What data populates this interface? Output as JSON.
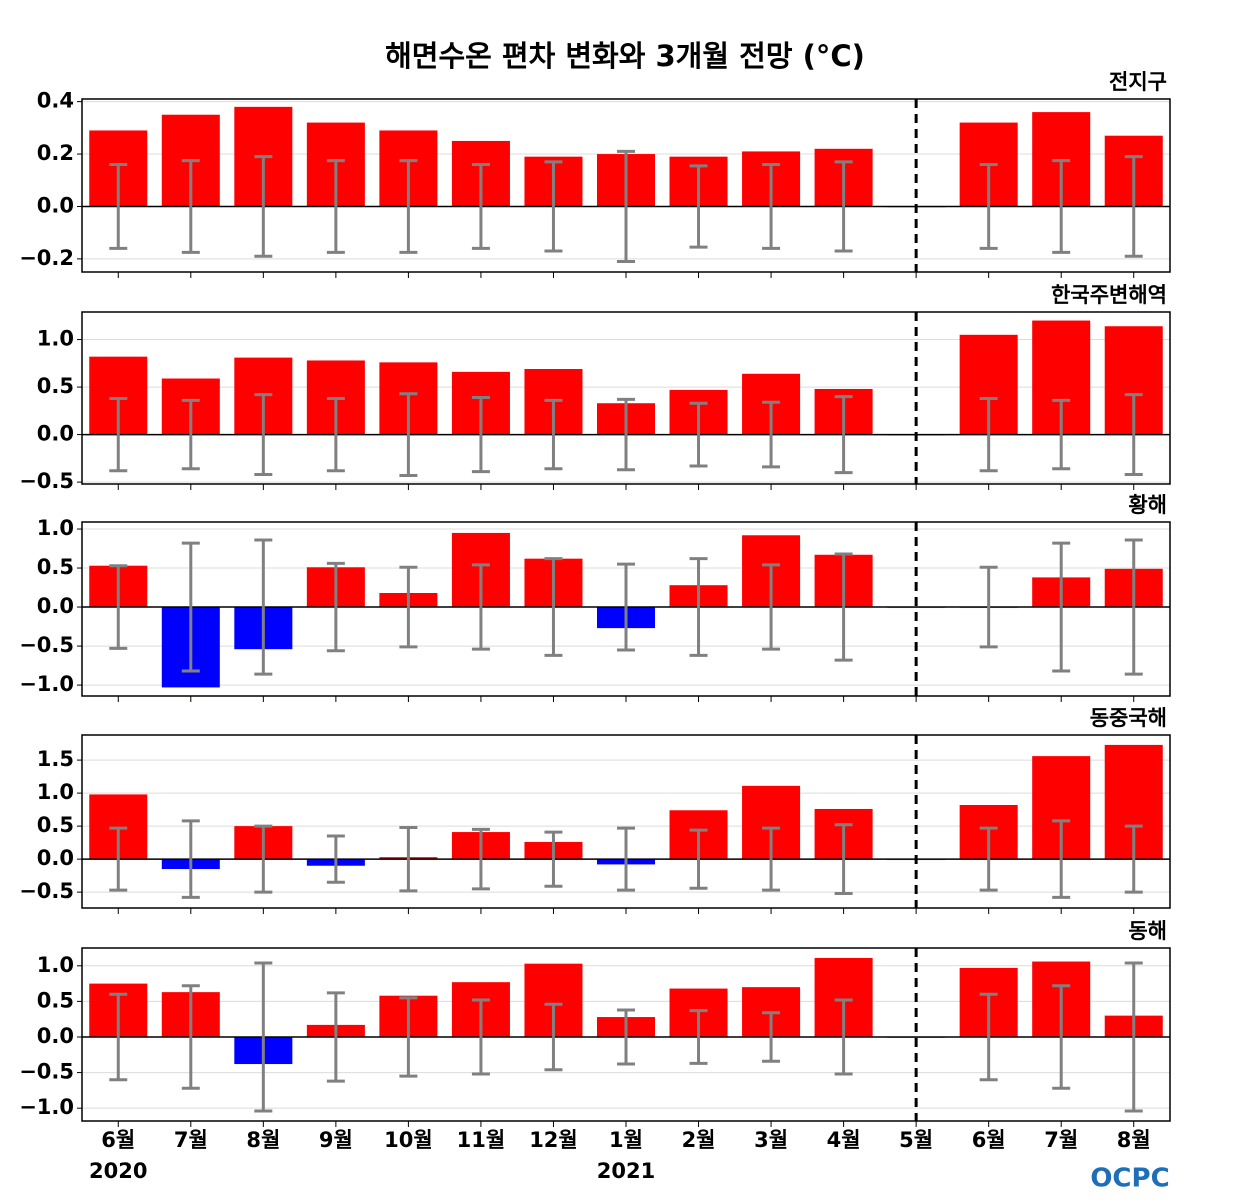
{
  "title": "해면수온 편차 변화와 3개월 전망 (°C)",
  "logo": "OCPC",
  "categories": [
    "6월",
    "7월",
    "8월",
    "9월",
    "10월",
    "11월",
    "12월",
    "1월",
    "2월",
    "3월",
    "4월",
    "5월",
    "6월",
    "7월",
    "8월"
  ],
  "x_sublabels": [
    "2020",
    null,
    null,
    null,
    null,
    null,
    null,
    "2021",
    null,
    null,
    null,
    null,
    null,
    null,
    null
  ],
  "divider_index": 11,
  "chart_data": [
    {
      "type": "bar",
      "subtitle": "전지구",
      "pos_color": "#ff0000",
      "neg_color": "#0000ff",
      "error_color": "#808080",
      "grid": true,
      "values": [
        0.29,
        0.35,
        0.38,
        0.32,
        0.29,
        0.25,
        0.19,
        0.2,
        0.19,
        0.21,
        0.22,
        0,
        0.32,
        0.36,
        0.27
      ],
      "errors": [
        0.16,
        0.175,
        0.19,
        0.175,
        0.175,
        0.16,
        0.17,
        0.21,
        0.155,
        0.16,
        0.17,
        null,
        0.16,
        0.175,
        0.19
      ],
      "ylim": [
        -0.25,
        0.41
      ],
      "yticks": [
        {
          "value": -0.2,
          "label": "−0.2"
        },
        {
          "value": 0,
          "label": "0.0"
        },
        0.2,
        0.4
      ]
    },
    {
      "type": "bar",
      "subtitle": "한국주변해역",
      "pos_color": "#ff0000",
      "neg_color": "#0000ff",
      "error_color": "#808080",
      "grid": true,
      "values": [
        0.82,
        0.59,
        0.81,
        0.78,
        0.76,
        0.66,
        0.69,
        0.33,
        0.47,
        0.64,
        0.48,
        0,
        1.05,
        1.2,
        1.14
      ],
      "errors": [
        0.38,
        0.36,
        0.42,
        0.38,
        0.43,
        0.39,
        0.36,
        0.37,
        0.33,
        0.34,
        0.4,
        null,
        0.38,
        0.36,
        0.42
      ],
      "ylim": [
        -0.52,
        1.29
      ],
      "yticks": [
        {
          "value": -0.5,
          "label": "−0.5"
        },
        {
          "value": 0,
          "label": "0.0"
        },
        0.5,
        {
          "value": 1,
          "label": "1.0"
        }
      ]
    },
    {
      "type": "bar",
      "subtitle": "황해",
      "pos_color": "#ff0000",
      "neg_color": "#0000ff",
      "error_color": "#808080",
      "grid": true,
      "values": [
        0.53,
        -1.03,
        -0.54,
        0.51,
        0.18,
        0.95,
        0.62,
        -0.27,
        0.28,
        0.92,
        0.67,
        0,
        -0.01,
        0.38,
        0.49
      ],
      "errors": [
        0.53,
        0.82,
        0.86,
        0.56,
        0.51,
        0.54,
        0.62,
        0.55,
        0.62,
        0.54,
        0.68,
        null,
        0.51,
        0.82,
        0.86
      ],
      "ylim": [
        -1.14,
        1.09
      ],
      "yticks": [
        {
          "value": -1,
          "label": "−1.0"
        },
        {
          "value": -0.5,
          "label": "−0.5"
        },
        {
          "value": 0,
          "label": "0.0"
        },
        0.5,
        {
          "value": 1,
          "label": "1.0"
        }
      ]
    },
    {
      "type": "bar",
      "subtitle": "동중국해",
      "pos_color": "#ff0000",
      "neg_color": "#0000ff",
      "error_color": "#808080",
      "grid": true,
      "values": [
        0.98,
        -0.15,
        0.5,
        -0.1,
        0.03,
        0.41,
        0.26,
        -0.08,
        0.74,
        1.11,
        0.76,
        0,
        0.82,
        1.56,
        1.73
      ],
      "errors": [
        0.47,
        0.58,
        0.5,
        0.35,
        0.48,
        0.45,
        0.41,
        0.47,
        0.44,
        0.47,
        0.52,
        null,
        0.47,
        0.58,
        0.5
      ],
      "ylim": [
        -0.74,
        1.88
      ],
      "yticks": [
        {
          "value": -0.5,
          "label": "−0.5"
        },
        {
          "value": 0,
          "label": "0.0"
        },
        0.5,
        {
          "value": 1,
          "label": "1.0"
        },
        1.5
      ]
    },
    {
      "type": "bar",
      "subtitle": "동해",
      "pos_color": "#ff0000",
      "neg_color": "#0000ff",
      "error_color": "#808080",
      "grid": true,
      "values": [
        0.75,
        0.63,
        -0.38,
        0.17,
        0.58,
        0.77,
        1.03,
        0.28,
        0.68,
        0.7,
        1.11,
        0,
        0.97,
        1.06,
        0.3
      ],
      "errors": [
        0.6,
        0.72,
        1.04,
        0.62,
        0.55,
        0.52,
        0.46,
        0.38,
        0.37,
        0.34,
        0.52,
        null,
        0.6,
        0.72,
        1.04
      ],
      "ylim": [
        -1.18,
        1.25
      ],
      "yticks": [
        {
          "value": -1,
          "label": "−1.0"
        },
        {
          "value": -0.5,
          "label": "−0.5"
        },
        {
          "value": 0,
          "label": "0.0"
        },
        0.5,
        {
          "value": 1,
          "label": "1.0"
        }
      ]
    }
  ]
}
